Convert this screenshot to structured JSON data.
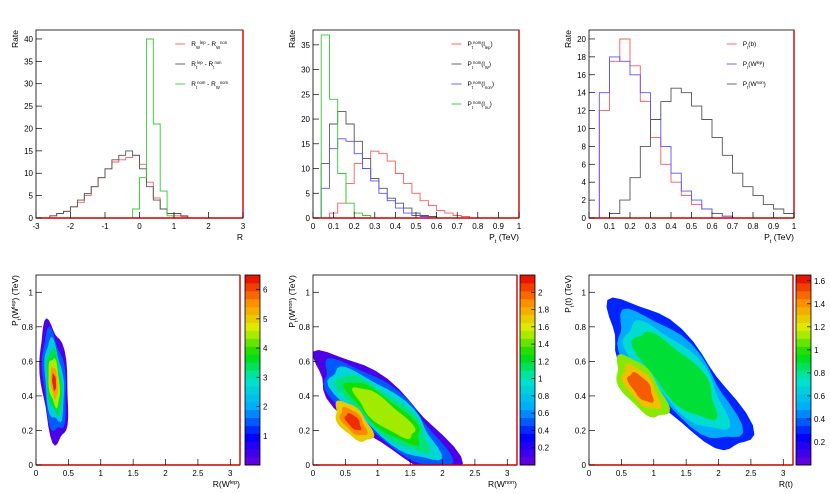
{
  "chart_data": [
    {
      "type": "histogram",
      "xlabel": "R",
      "ylabel": "Rate",
      "xlim": [
        -3,
        3
      ],
      "ylim": [
        0,
        42
      ],
      "xticks": [
        "-3",
        "-2",
        "-1",
        "0",
        "1",
        "2",
        "3"
      ],
      "yticks": [
        "0",
        "5",
        "10",
        "15",
        "20",
        "25",
        "30",
        "35",
        "40"
      ],
      "legend": {
        "position": "top-right",
        "entries": [
          "R_W^lep - R_W^non",
          "R_t^lep - R_t^non",
          "R_t^nom - R_W^nom"
        ]
      },
      "series": [
        {
          "name": "R_W^lep - R_W^non",
          "color": "#ff5a5a",
          "x0": -3,
          "dx": 0.2,
          "values": [
            0,
            0,
            0.5,
            1,
            1.5,
            2.5,
            3.5,
            5,
            7,
            9,
            11,
            12.5,
            13,
            13.5,
            14,
            12,
            8,
            4.5,
            2,
            1,
            0.5,
            0.3,
            0,
            0,
            0,
            0,
            0,
            0,
            0,
            0
          ]
        },
        {
          "name": "R_t^lep - R_t^non",
          "color": "#555555",
          "x0": -3,
          "dx": 0.2,
          "values": [
            0,
            0,
            0.5,
            1,
            1.5,
            2.5,
            4,
            5.5,
            7,
            9,
            11,
            13,
            14,
            15,
            14,
            11,
            7,
            4,
            2,
            1,
            1,
            0.5,
            0,
            0,
            0,
            0,
            0,
            0,
            0,
            0
          ]
        },
        {
          "name": "R_t^nom - R_W^nom",
          "color": "#33cc33",
          "x0": -3,
          "dx": 0.2,
          "values": [
            0,
            0,
            0,
            0,
            0,
            0,
            0,
            0,
            0,
            0,
            0,
            0,
            0,
            0,
            2,
            9,
            40,
            21,
            6,
            0.5,
            0,
            0,
            0,
            0,
            0,
            0,
            0,
            0,
            0,
            0
          ]
        }
      ]
    },
    {
      "type": "histogram",
      "xlabel": "P_t (TeV)",
      "ylabel": "Rate",
      "xlim": [
        0,
        1
      ],
      "ylim": [
        0,
        38
      ],
      "xticks": [
        "0",
        "0.1",
        "0.2",
        "0.3",
        "0.4",
        "0.5",
        "0.6",
        "0.7",
        "0.8",
        "0.9",
        "1"
      ],
      "yticks": [
        "0",
        "5",
        "10",
        "15",
        "20",
        "25",
        "30",
        "35"
      ],
      "legend": {
        "position": "top-right",
        "entries": [
          "P_t^nom(l_lep)",
          "P_t^nom(l_W)",
          "P_t^nom(l_non)",
          "P_t^nom(l_nu)"
        ]
      },
      "series": [
        {
          "name": "P_t^nom(l_lep)",
          "color": "#ff5a5a",
          "x0": 0,
          "dx": 0.04,
          "values": [
            0,
            0,
            1,
            3,
            7,
            11,
            12,
            13.5,
            13,
            11.5,
            9,
            7,
            5,
            3.5,
            2.5,
            1.5,
            1,
            0.5,
            0.3,
            0,
            0,
            0,
            0,
            0,
            0
          ]
        },
        {
          "name": "P_t^nom(l_W)",
          "color": "#555555",
          "x0": 0,
          "dx": 0.04,
          "values": [
            0,
            11,
            19,
            21.5,
            19,
            15.5,
            12,
            8,
            6,
            4,
            3,
            2,
            1,
            0.5,
            0.3,
            0,
            0,
            0,
            0,
            0,
            0,
            0,
            0,
            0,
            0
          ]
        },
        {
          "name": "P_t^nom(l_non)",
          "color": "#5555ff",
          "x0": 0,
          "dx": 0.04,
          "values": [
            0,
            6,
            14,
            16,
            15.5,
            13,
            10,
            7.5,
            5,
            3.5,
            2,
            1,
            0.5,
            0.3,
            0,
            0,
            0,
            0,
            0,
            0,
            0,
            0,
            0,
            0,
            0
          ]
        },
        {
          "name": "P_t^nom(l_nu)",
          "color": "#33cc33",
          "x0": 0,
          "dx": 0.04,
          "values": [
            0,
            37,
            24,
            9,
            3,
            1,
            0.5,
            0,
            0,
            0,
            0,
            0,
            0,
            0,
            0,
            0,
            0,
            0,
            0,
            0,
            0,
            0,
            0,
            0,
            0
          ]
        }
      ]
    },
    {
      "type": "histogram",
      "xlabel": "P_t (TeV)",
      "ylabel": "Rate",
      "xlim": [
        0,
        1
      ],
      "ylim": [
        0,
        21
      ],
      "xticks": [
        "0",
        "0.1",
        "0.2",
        "0.3",
        "0.4",
        "0.5",
        "0.6",
        "0.7",
        "0.8",
        "0.9",
        "1"
      ],
      "yticks": [
        "0",
        "2",
        "4",
        "6",
        "8",
        "10",
        "12",
        "14",
        "16",
        "18",
        "20"
      ],
      "legend": {
        "position": "top-right",
        "entries": [
          "P_t(b)",
          "P_t(W^lep)",
          "P_t(W^non)"
        ]
      },
      "series": [
        {
          "name": "P_t(b)",
          "color": "#ff5a5a",
          "x0": 0.05,
          "dx": 0.05,
          "values": [
            12,
            17.5,
            20,
            17,
            13,
            9,
            6,
            4,
            2.5,
            1.5,
            1,
            0.5,
            0.2,
            0,
            0,
            0,
            0,
            0,
            0
          ]
        },
        {
          "name": "P_t(W^lep)",
          "color": "#5555ff",
          "x0": 0.05,
          "dx": 0.05,
          "values": [
            14,
            18,
            17.5,
            16,
            14,
            11,
            8,
            5,
            3,
            2,
            1,
            0.5,
            0.2,
            0,
            0,
            0,
            0,
            0,
            0
          ]
        },
        {
          "name": "P_t(W^non)",
          "color": "#555555",
          "x0": 0.05,
          "dx": 0.05,
          "values": [
            0,
            0.5,
            2,
            4.5,
            8,
            11,
            13,
            14.5,
            14,
            12.5,
            11,
            9,
            7,
            5,
            3.5,
            2.5,
            1.5,
            1,
            0.5
          ]
        }
      ]
    },
    {
      "type": "heatmap",
      "xlabel": "R(W^lep)",
      "ylabel": "P_t(W^lep) (TeV)",
      "xlim": [
        0,
        3.15
      ],
      "ylim": [
        0,
        1.1
      ],
      "xticks": [
        "0",
        "0.5",
        "1",
        "1.5",
        "2",
        "2.5",
        "3"
      ],
      "yticks": [
        "0",
        "0.2",
        "0.4",
        "0.6",
        "0.8",
        "1"
      ],
      "zlim": [
        0,
        6.5
      ],
      "zticks": [
        "1",
        "2",
        "3",
        "4",
        "5",
        "6"
      ],
      "peak": {
        "x": 0.25,
        "y": 0.45,
        "z": 6.4
      },
      "blobs": [
        {
          "cx": 0.28,
          "cy": 0.48,
          "rx": 0.2,
          "ry": 0.36,
          "rot": 18,
          "levels": [
            {
              "s": 1.0,
              "z": 0.3
            },
            {
              "s": 0.84,
              "z": 1.5
            },
            {
              "s": 0.68,
              "z": 2.5
            },
            {
              "s": 0.54,
              "z": 3.5
            },
            {
              "s": 0.4,
              "z": 4.5
            },
            {
              "s": 0.26,
              "z": 5.4
            },
            {
              "s": 0.14,
              "z": 6.3
            }
          ]
        }
      ]
    },
    {
      "type": "heatmap",
      "xlabel": "R(W^non)",
      "ylabel": "P_t(W^non) (TeV)",
      "xlim": [
        0,
        3.15
      ],
      "ylim": [
        0,
        1.1
      ],
      "xticks": [
        "0",
        "0.5",
        "1",
        "1.5",
        "2",
        "2.5",
        "3"
      ],
      "yticks": [
        "0",
        "0.2",
        "0.4",
        "0.6",
        "0.8",
        "1"
      ],
      "zlim": [
        0,
        2.2
      ],
      "zticks": [
        "0.2",
        "0.4",
        "0.6",
        "0.8",
        "1",
        "1.2",
        "1.4",
        "1.6",
        "1.8",
        "2"
      ],
      "peak": {
        "x": 0.6,
        "y": 0.25,
        "z": 2.1
      },
      "blobs": [
        {
          "cx": 1.1,
          "cy": 0.3,
          "rx": 1.15,
          "ry": 0.19,
          "rot": -15,
          "levels": [
            {
              "s": 1.0,
              "z": 0.1
            },
            {
              "s": 0.88,
              "z": 0.5
            },
            {
              "s": 0.76,
              "z": 0.9
            },
            {
              "s": 0.64,
              "z": 1.1
            },
            {
              "s": 0.52,
              "z": 1.3
            },
            {
              "s": 0.42,
              "z": 1.5
            }
          ]
        },
        {
          "cx": 0.62,
          "cy": 0.25,
          "rx": 0.3,
          "ry": 0.09,
          "rot": -15,
          "levels": [
            {
              "s": 1.0,
              "z": 1.7
            },
            {
              "s": 0.7,
              "z": 1.9
            },
            {
              "s": 0.42,
              "z": 2.1
            }
          ]
        }
      ]
    },
    {
      "type": "heatmap",
      "xlabel": "R(t)",
      "ylabel": "P_t(t) (TeV)",
      "xlim": [
        0,
        3.15
      ],
      "ylim": [
        0,
        1.1
      ],
      "xticks": [
        "0",
        "0.5",
        "1",
        "1.5",
        "2",
        "2.5",
        "3"
      ],
      "yticks": [
        "0",
        "0.2",
        "0.4",
        "0.6",
        "0.8",
        "1"
      ],
      "zlim": [
        0,
        1.65
      ],
      "zticks": [
        "0.2",
        "0.4",
        "0.6",
        "0.8",
        "1",
        "1.2",
        "1.4",
        "1.6"
      ],
      "peak": {
        "x": 0.75,
        "y": 0.45,
        "z": 1.6
      },
      "blobs": [
        {
          "cx": 1.35,
          "cy": 0.52,
          "rx": 1.15,
          "ry": 0.26,
          "rot": -18,
          "levels": [
            {
              "s": 1.0,
              "z": 0.3
            },
            {
              "s": 0.86,
              "z": 0.5
            },
            {
              "s": 0.72,
              "z": 0.7
            },
            {
              "s": 0.58,
              "z": 0.9
            }
          ]
        },
        {
          "cx": 0.8,
          "cy": 0.45,
          "rx": 0.42,
          "ry": 0.13,
          "rot": -18,
          "levels": [
            {
              "s": 1.0,
              "z": 1.1
            },
            {
              "s": 0.72,
              "z": 1.3
            },
            {
              "s": 0.48,
              "z": 1.5
            }
          ]
        }
      ]
    }
  ]
}
